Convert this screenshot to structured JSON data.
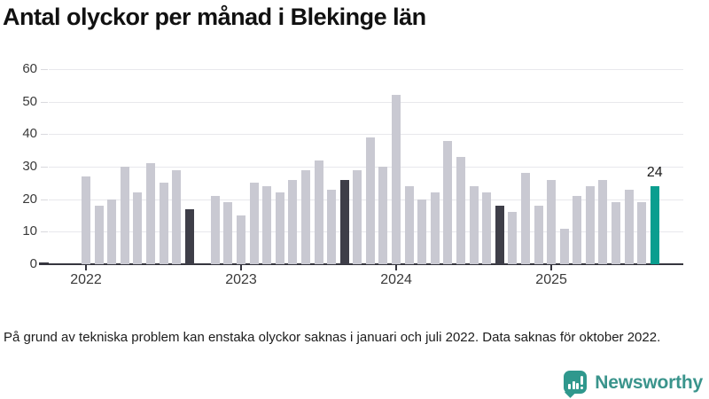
{
  "title": "Antal olyckor per månad i Blekinge län",
  "footnote": "På grund av tekniska problem kan enstaka olyckor saknas i januari och juli 2022. Data saknas för oktober 2022.",
  "brand": {
    "name": "Newsworthy",
    "icon": "newsworthy-speech-bubble-bar-chart-icon",
    "icon_color": "#2f988d",
    "text_color": "#3a948c"
  },
  "chart_data": {
    "type": "bar",
    "title": "Antal olyckor per månad i Blekinge län",
    "xlabel": "",
    "ylabel": "",
    "ylim": [
      0,
      60
    ],
    "y_ticks": [
      0,
      10,
      20,
      30,
      40,
      50,
      60
    ],
    "grid": true,
    "legend": "none",
    "x_unit": "month",
    "year_tick_labels": [
      "2022",
      "2023",
      "2024",
      "2025"
    ],
    "series": [
      {
        "year": "2022",
        "values": [
          27,
          18,
          20,
          30,
          22,
          31,
          25,
          29,
          17,
          null,
          21,
          19
        ],
        "highlight_index": 8
      },
      {
        "year": "2023",
        "values": [
          15,
          25,
          24,
          22,
          26,
          29,
          32,
          23,
          26,
          29,
          39,
          30
        ],
        "highlight_index": 8
      },
      {
        "year": "2024",
        "values": [
          52,
          24,
          20,
          22,
          38,
          33,
          24,
          22,
          18,
          16,
          28,
          18
        ],
        "highlight_index": 8
      },
      {
        "year": "2025",
        "values": [
          26,
          11,
          21,
          24,
          26,
          19,
          23,
          19,
          24
        ],
        "highlight_index": 8,
        "highlight_is_latest": true
      }
    ],
    "colors": {
      "default": "#c9c9d2",
      "highlight": "#3e3e48",
      "latest": "#0a9e8f"
    },
    "annotation": {
      "text": "24",
      "attached_to": "last-bar"
    }
  }
}
